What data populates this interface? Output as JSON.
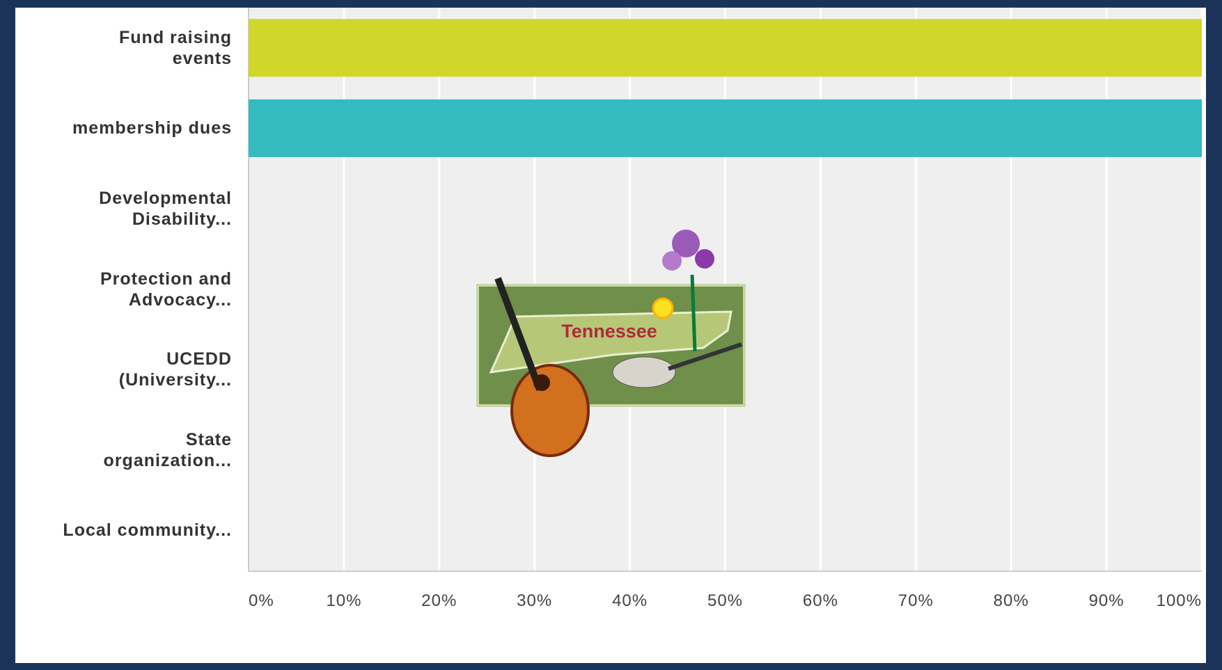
{
  "chart_data": {
    "type": "hbar",
    "categories": [
      "Fund raising events",
      "membership dues",
      "Developmental Disability...",
      "Protection and Advocacy...",
      "UCEDD (University...",
      "State organization...",
      "Local community..."
    ],
    "values": [
      100,
      100,
      0,
      0,
      0,
      0,
      0
    ],
    "colors": [
      "#d0d62a",
      "#33bbc0",
      "#d0d62a",
      "#33bbc0",
      "#d0d62a",
      "#33bbc0",
      "#d0d62a"
    ],
    "xlim": [
      0,
      100
    ],
    "xticks": [
      {
        "value": 0,
        "label": "0%"
      },
      {
        "value": 10,
        "label": "10%"
      },
      {
        "value": 20,
        "label": "20%"
      },
      {
        "value": 30,
        "label": "30%"
      },
      {
        "value": 40,
        "label": "40%"
      },
      {
        "value": 50,
        "label": "50%"
      },
      {
        "value": 60,
        "label": "60%"
      },
      {
        "value": 70,
        "label": "70%"
      },
      {
        "value": 80,
        "label": "80%"
      },
      {
        "value": 90,
        "label": "90%"
      },
      {
        "value": 100,
        "label": "100%"
      }
    ],
    "grid": true,
    "annotation": "Tennessee"
  }
}
